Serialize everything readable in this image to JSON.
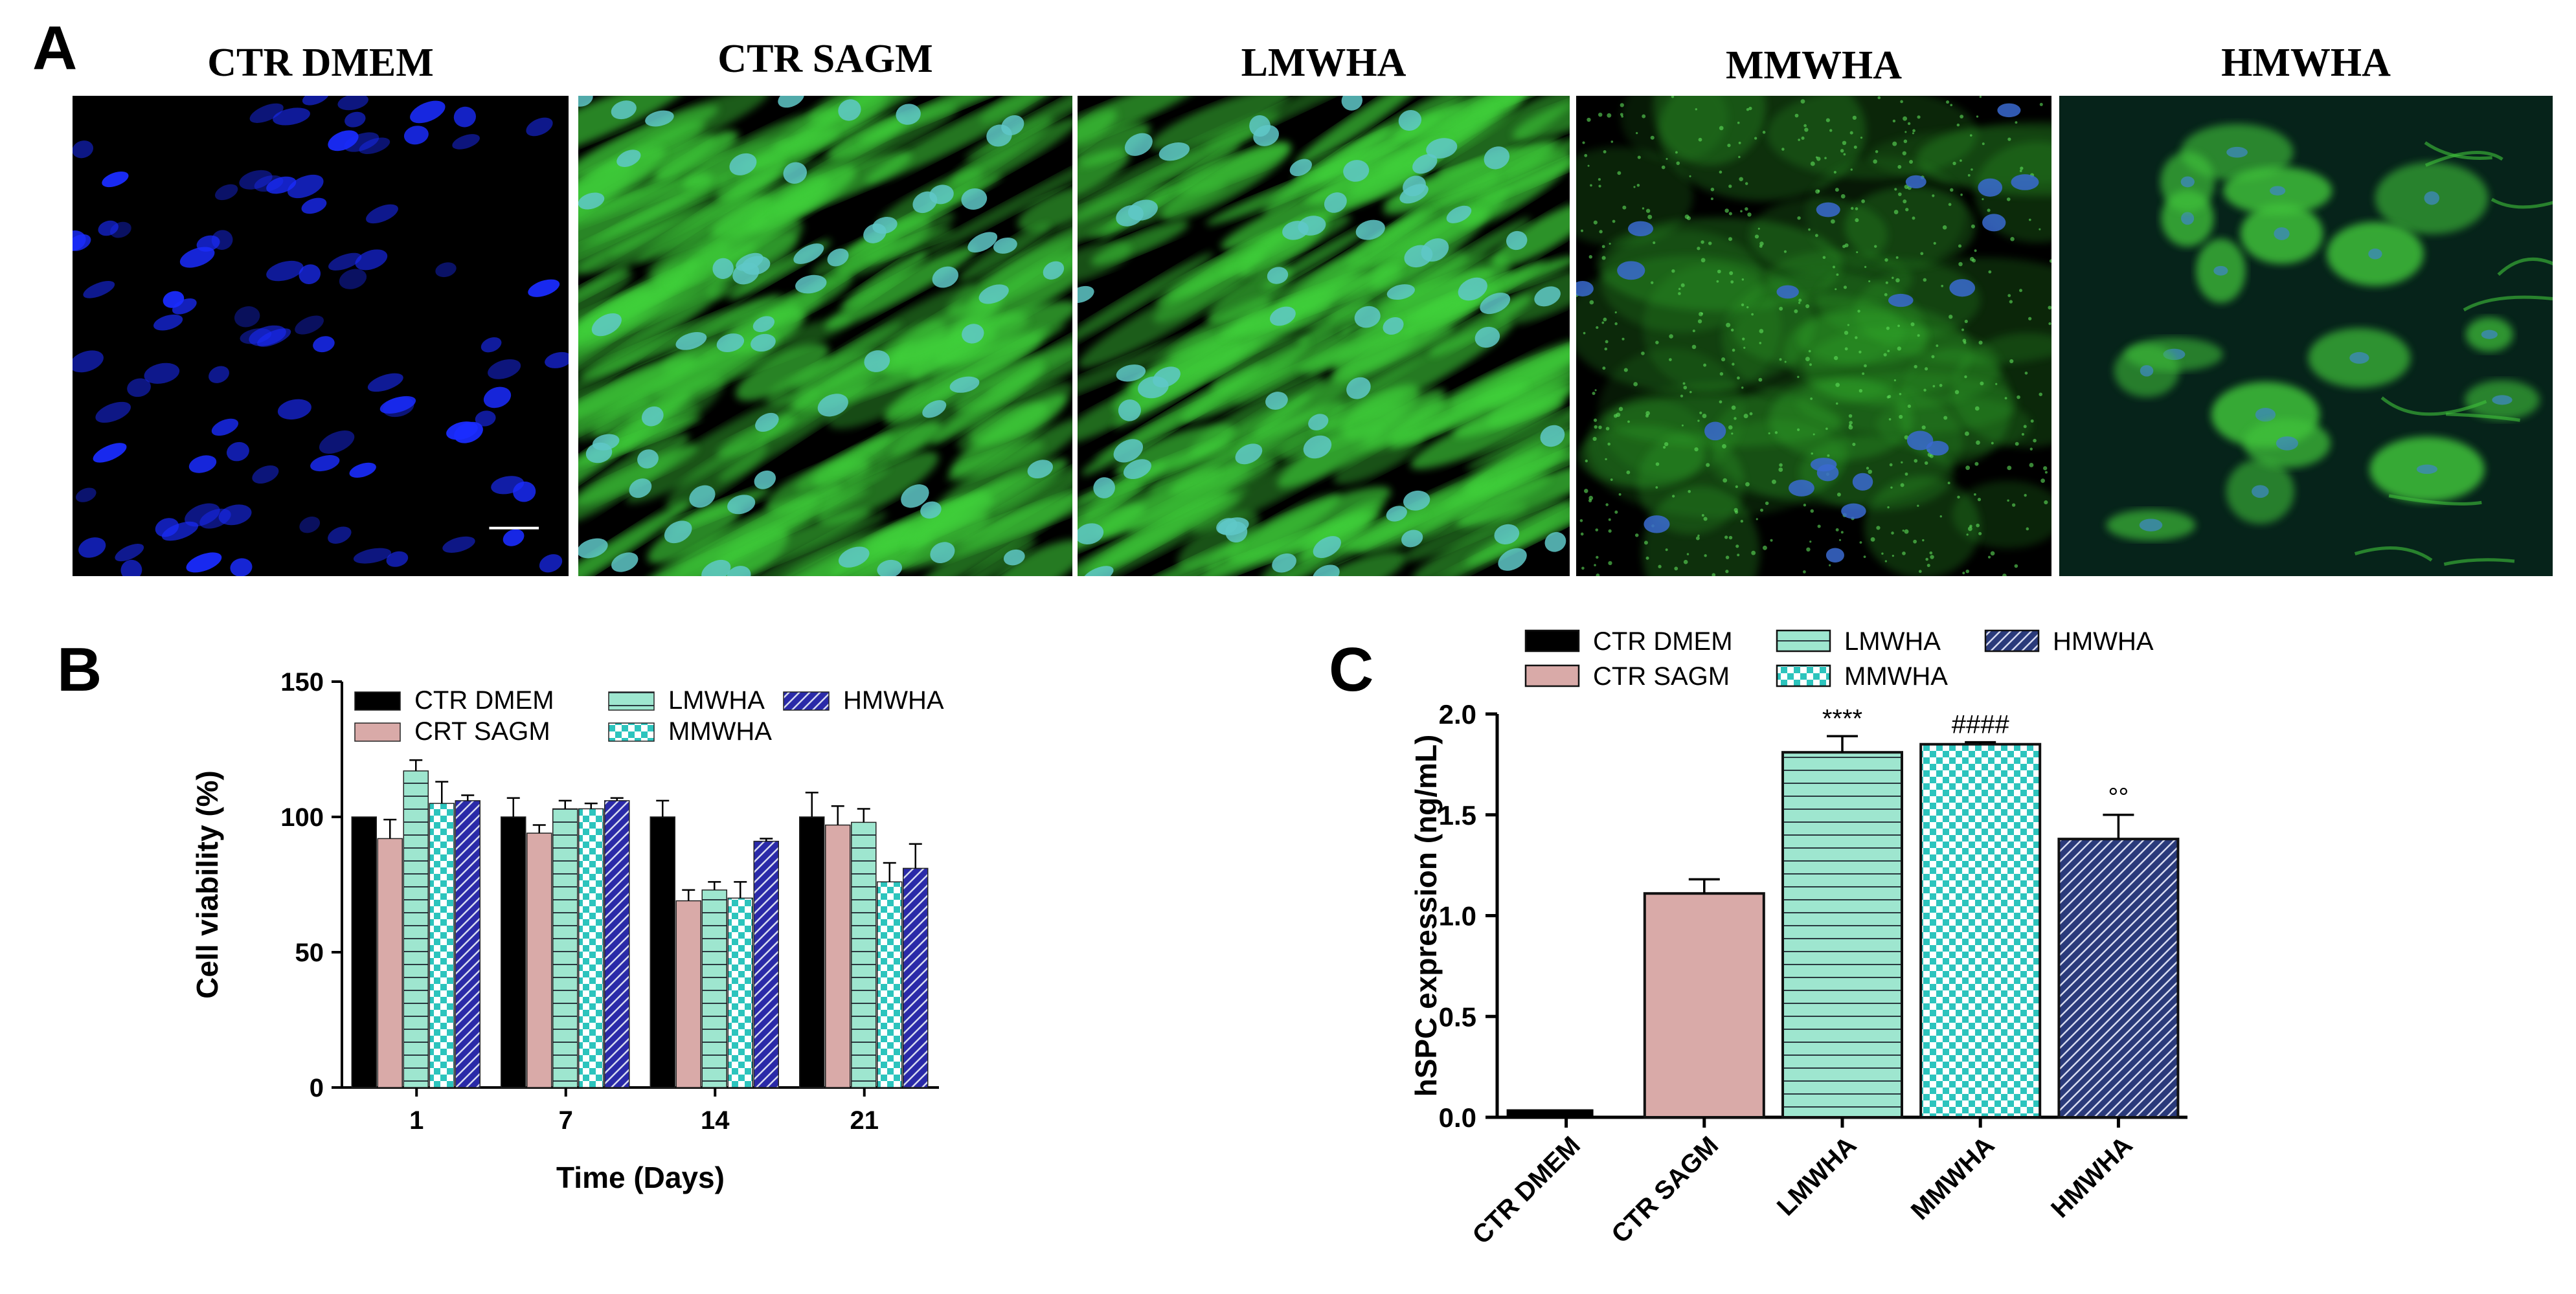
{
  "panels": {
    "a": {
      "letter": "A",
      "images": [
        {
          "title": "CTR DMEM",
          "stain": "nuclei-only",
          "color": "#1a2cff"
        },
        {
          "title": "CTR SAGM",
          "stain": "dense-green",
          "color": "#3fd13a"
        },
        {
          "title": "LMWHA",
          "stain": "dense-green",
          "color": "#3fd13a"
        },
        {
          "title": "MMWHA",
          "stain": "sparse-green",
          "color": "#35b52f"
        },
        {
          "title": "HMWHA",
          "stain": "clustered-green",
          "color": "#3fc23a"
        }
      ]
    },
    "b": {
      "letter": "B"
    },
    "c": {
      "letter": "C"
    }
  },
  "chart_data": [
    {
      "type": "bar",
      "categories": [
        "1",
        "7",
        "14",
        "21"
      ],
      "xlabel": "Time (Days)",
      "ylabel": "Cell viability (%)",
      "ylim": [
        0,
        150
      ],
      "yticks": [
        0,
        50,
        100,
        150
      ],
      "legend_position": "top",
      "series": [
        {
          "name": "CTR DMEM",
          "values": [
            100,
            100,
            100,
            100
          ],
          "errors": [
            0,
            7,
            6,
            9
          ],
          "color": "#000000",
          "pattern": "solid"
        },
        {
          "name": "CRT SAGM",
          "values": [
            92,
            94,
            69,
            97
          ],
          "errors": [
            7,
            3,
            4,
            7
          ],
          "color": "#d9aaa8",
          "pattern": "solid"
        },
        {
          "name": "LMWHA",
          "values": [
            117,
            103,
            73,
            98
          ],
          "errors": [
            4,
            3,
            3,
            5
          ],
          "color": "#9ee6cf",
          "pattern": "horizontal-lines"
        },
        {
          "name": "MMWHA",
          "values": [
            105,
            103,
            70,
            76
          ],
          "errors": [
            8,
            2,
            6,
            7
          ],
          "color": "#2cc4bd",
          "pattern": "checker"
        },
        {
          "name": "HMWHA",
          "values": [
            106,
            106,
            91,
            81
          ],
          "errors": [
            2,
            1,
            1,
            9
          ],
          "color": "#2a2aa8",
          "pattern": "diagonal-hatch"
        }
      ]
    },
    {
      "type": "bar",
      "categories": [
        "CTR DMEM",
        "CTR SAGM",
        "LMWHA",
        "MMWHA",
        "HMWHA"
      ],
      "values": [
        0.03,
        1.11,
        1.81,
        1.85,
        1.38
      ],
      "errors": [
        0,
        0.07,
        0.08,
        0.01,
        0.12
      ],
      "annotations": [
        "",
        "",
        "****",
        "####",
        "°°"
      ],
      "ylabel": "hSPC expression (ng/mL)",
      "ylim": [
        0,
        2.0
      ],
      "yticks": [
        0.0,
        0.5,
        1.0,
        1.5,
        2.0
      ],
      "ytick_labels": [
        "0.0",
        "0.5",
        "1.0",
        "1.5",
        "2.0"
      ],
      "legend_position": "top",
      "legend": [
        {
          "name": "CTR DMEM",
          "color": "#000000",
          "pattern": "solid"
        },
        {
          "name": "CTR SAGM",
          "color": "#d9aaa8",
          "pattern": "solid"
        },
        {
          "name": "LMWHA",
          "color": "#9ee6cf",
          "pattern": "horizontal-lines"
        },
        {
          "name": "MMWHA",
          "color": "#2cc4bd",
          "pattern": "checker"
        },
        {
          "name": "HMWHA",
          "color": "#2a3a7a",
          "pattern": "diagonal-hatch"
        }
      ]
    }
  ]
}
